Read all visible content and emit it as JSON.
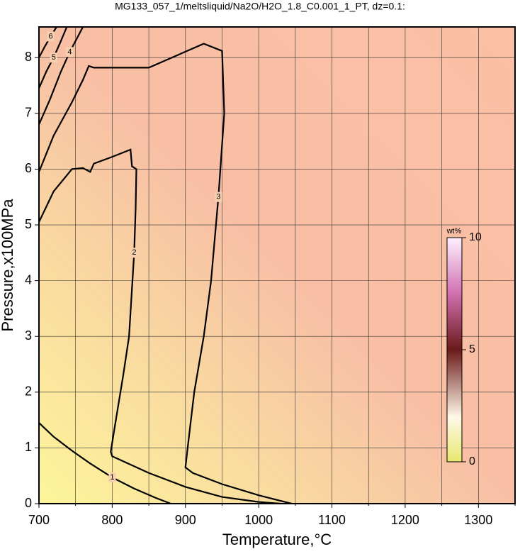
{
  "chart_data": {
    "type": "contour",
    "title": "MG133_057_1/meltsliquid/Na2O/H2O_1.8_C0.001_1_PT, dz=0.1:",
    "x_label": "Temperature,°C",
    "y_label": "Pressure,x100MPa",
    "xlim": [
      700,
      1350
    ],
    "ylim": [
      0,
      8.55
    ],
    "xticks": [
      700,
      800,
      900,
      1000,
      1100,
      1200,
      1300
    ],
    "xminorticks": [
      750,
      850,
      950,
      1050,
      1150,
      1250,
      1350
    ],
    "yticks": [
      0,
      1,
      2,
      3,
      4,
      5,
      6,
      7,
      8
    ],
    "grid": true,
    "contours": [
      {
        "level": 1,
        "x": [
          700,
          720,
          745,
          770,
          800,
          830,
          860,
          880
        ],
        "y": [
          1.45,
          1.2,
          0.95,
          0.72,
          0.47,
          0.27,
          0.1,
          0
        ]
      },
      {
        "level": 2,
        "x": [
          700,
          720,
          745,
          760,
          770,
          775,
          800,
          825,
          827,
          833,
          832,
          830,
          823,
          815,
          805,
          798,
          800,
          850,
          900,
          950,
          1000,
          1030
        ],
        "y": [
          5.05,
          5.6,
          6.0,
          6.02,
          5.95,
          6.1,
          6.22,
          6.35,
          6.05,
          6.0,
          5.3,
          4.5,
          3.0,
          2.3,
          1.5,
          0.93,
          0.85,
          0.55,
          0.3,
          0.12,
          0.03,
          0
        ]
      },
      {
        "level": 3,
        "x": [
          700,
          720,
          745,
          760,
          768,
          775,
          850,
          925,
          950,
          953,
          945,
          935,
          925,
          912,
          903,
          900,
          910,
          950,
          1000,
          1045
        ],
        "y": [
          5.95,
          6.6,
          7.2,
          7.6,
          7.85,
          7.82,
          7.82,
          8.25,
          8.12,
          7.0,
          5.5,
          4.0,
          3.0,
          2.0,
          1.0,
          0.65,
          0.55,
          0.35,
          0.15,
          0
        ]
      },
      {
        "level": 4,
        "x": [
          700,
          715,
          730,
          742,
          752,
          760
        ],
        "y": [
          6.8,
          7.25,
          7.75,
          8.1,
          8.35,
          8.55
        ]
      },
      {
        "level": 5,
        "x": [
          700,
          710,
          720,
          730,
          738
        ],
        "y": [
          7.45,
          7.75,
          8.0,
          8.3,
          8.55
        ]
      },
      {
        "level": 6,
        "x": [
          700,
          708,
          716,
          724
        ],
        "y": [
          8.0,
          8.2,
          8.38,
          8.55
        ]
      }
    ],
    "colorbar": {
      "label": "wt%",
      "clim": [
        0,
        10
      ],
      "ticks": [
        0,
        5,
        10
      ]
    }
  }
}
